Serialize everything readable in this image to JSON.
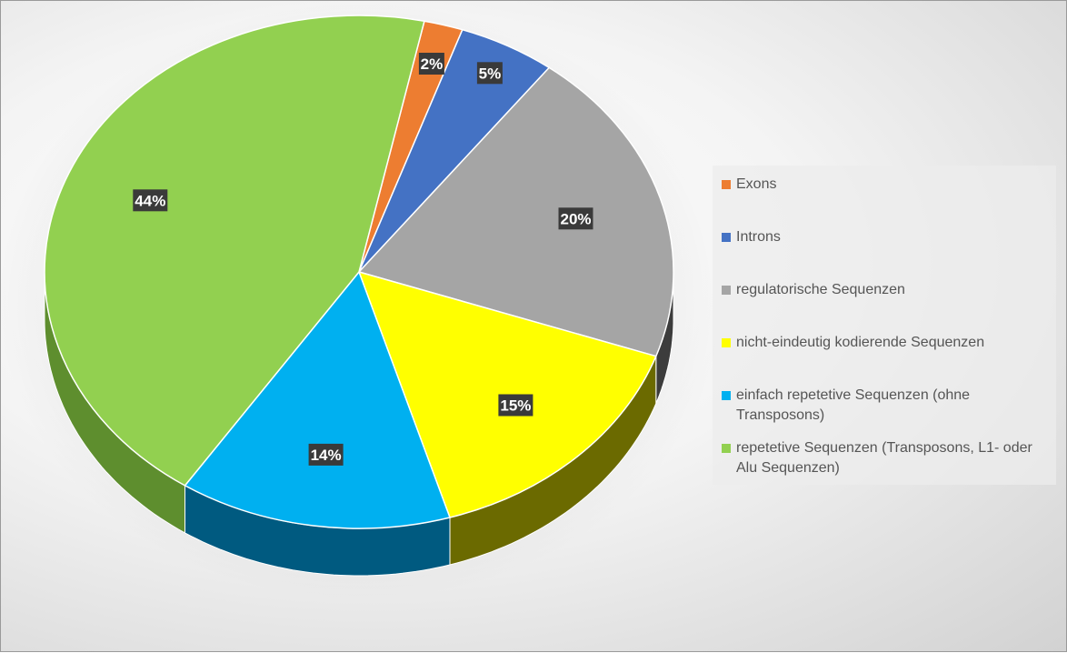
{
  "chart_data": {
    "type": "pie",
    "style": "3d-exploded",
    "legend_position": "right",
    "title": "",
    "slices": [
      {
        "label": "Exons",
        "value": 2,
        "data_label": "2%",
        "color": "#ED7D31",
        "side_color": "#8A4314"
      },
      {
        "label": "Introns",
        "value": 5,
        "data_label": "5%",
        "color": "#4472C4",
        "side_color": "#223E72"
      },
      {
        "label": "regulatorische Sequenzen",
        "value": 20,
        "data_label": "20%",
        "color": "#A5A5A5",
        "side_color": "#3C3C3C"
      },
      {
        "label": "nicht-eindeutig kodierende Sequenzen",
        "value": 15,
        "data_label": "15%",
        "color": "#FFFF00",
        "side_color": "#6B6A00"
      },
      {
        "label": "einfach repetetive Sequenzen (ohne Transposons)",
        "value": 14,
        "data_label": "14%",
        "color": "#00B0F0",
        "side_color": "#005A80"
      },
      {
        "label": "repetetive Sequenzen (Transposons, L1- oder Alu Sequenzen)",
        "value": 44,
        "data_label": "44%",
        "color": "#92D050",
        "side_color": "#5E8E2E"
      }
    ]
  }
}
